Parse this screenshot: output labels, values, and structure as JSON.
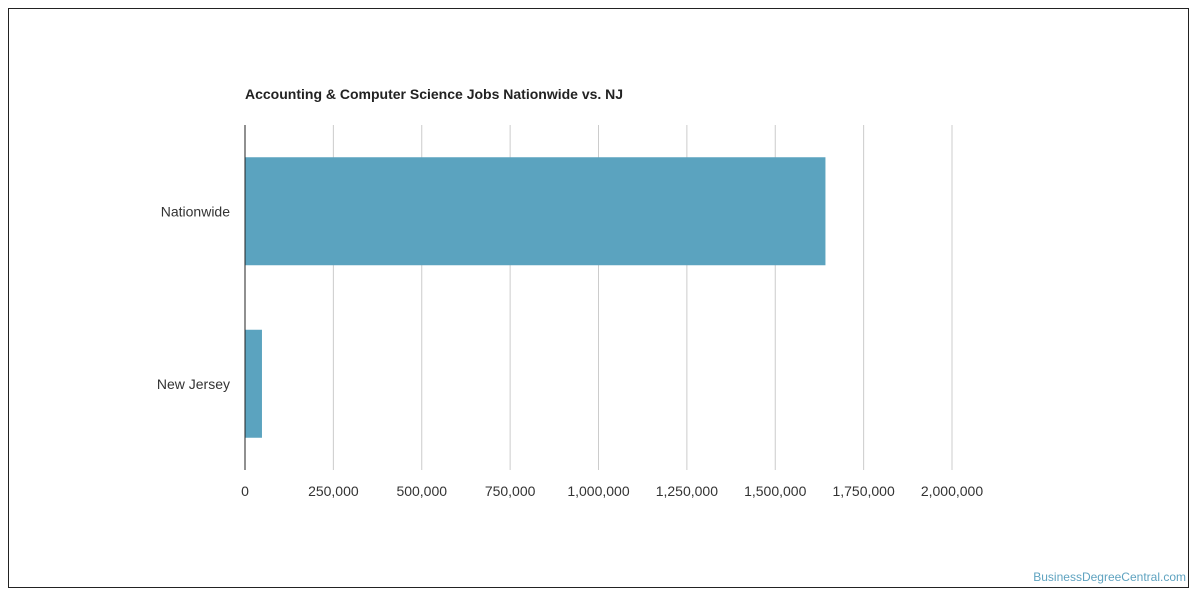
{
  "chart_data": {
    "type": "bar",
    "orientation": "horizontal",
    "title": "Accounting & Computer Science Jobs Nationwide vs. NJ",
    "categories": [
      "Nationwide",
      "New Jersey"
    ],
    "values": [
      1642000,
      48000
    ],
    "xlim": [
      0,
      2000000
    ],
    "xticks": [
      0,
      250000,
      500000,
      750000,
      1000000,
      1250000,
      1500000,
      1750000,
      2000000
    ],
    "xtick_labels": [
      "0",
      "250,000",
      "500,000",
      "750,000",
      "1,000,000",
      "1,250,000",
      "1,500,000",
      "1,750,000",
      "2,000,000"
    ],
    "grid": "vertical",
    "legend": "none",
    "bar_color": "#5ba3bf",
    "grid_color": "#cccccc",
    "axis_color": "#222222"
  },
  "watermark": "BusinessDegreeCentral.com"
}
